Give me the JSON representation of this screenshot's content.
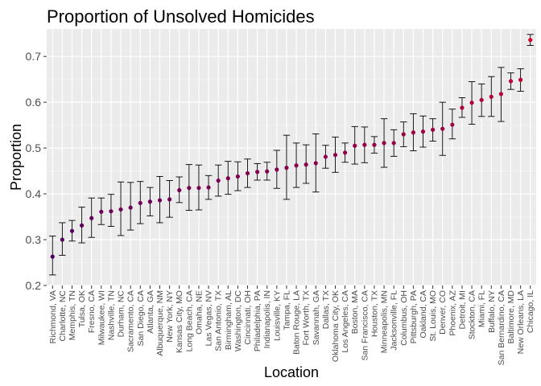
{
  "chart_data": {
    "type": "scatter",
    "title": "Proportion of Unsolved Homicides",
    "xlabel": "Location",
    "ylabel": "Proportion",
    "ylim": [
      0.2,
      0.76
    ],
    "yticks": [
      "0.2",
      "0.3",
      "0.4",
      "0.5",
      "0.6",
      "0.7"
    ],
    "grid": true,
    "legend": "none",
    "color_low": "#4b0066",
    "color_high": "#d8002a",
    "panel_bg": "#ebebeb",
    "categories": [
      "Richmond, VA",
      "Charlotte, NC",
      "Memphis, TN",
      "Tulsa, OK",
      "Fresno, CA",
      "Milwaukee, WI",
      "Nashville, TN",
      "Durham, NC",
      "Sacramento, CA",
      "San Diego, CA",
      "Atlanta, GA",
      "Albuquerque, NM",
      "New York, NY",
      "Kansas City, MO",
      "Long Beach, CA",
      "Omaha, NE",
      "Las Vegas, NV",
      "San Antonio, TX",
      "Birmingham, AL",
      "Washington, DC",
      "Cincinnati, OH",
      "Philadelphia, PA",
      "Indianapolis, IN",
      "Louisville, KY",
      "Tampa, FL",
      "Baton Rouge, LA",
      "Fort Worth, TX",
      "Savannah, GA",
      "Dallas, TX",
      "Oklahoma City, OK",
      "Los Angeles, CA",
      "Boston, MA",
      "San Francisco, CA",
      "Houston, TX",
      "Minneapolis, MN",
      "Jacksonville, FL",
      "Columbus, OH",
      "Pittsburgh, PA",
      "Oakland, CA",
      "St. Louis, MO",
      "Denver, CO",
      "Phoenix, AZ",
      "Detroit, MI",
      "Stockton, CA",
      "Miami, FL",
      "Buffalo, NY",
      "San Bernardino, CA",
      "Baltimore, MD",
      "New Orleans, LA",
      "Chicago, IL"
    ],
    "estimate": [
      0.263,
      0.3,
      0.319,
      0.331,
      0.347,
      0.361,
      0.362,
      0.366,
      0.37,
      0.38,
      0.383,
      0.386,
      0.388,
      0.408,
      0.413,
      0.413,
      0.414,
      0.429,
      0.434,
      0.438,
      0.445,
      0.448,
      0.449,
      0.453,
      0.457,
      0.462,
      0.464,
      0.467,
      0.481,
      0.485,
      0.49,
      0.505,
      0.507,
      0.507,
      0.511,
      0.511,
      0.53,
      0.534,
      0.536,
      0.54,
      0.542,
      0.551,
      0.588,
      0.599,
      0.605,
      0.612,
      0.618,
      0.646,
      0.649,
      0.736
    ],
    "conf_low": [
      0.223,
      0.266,
      0.297,
      0.293,
      0.305,
      0.333,
      0.329,
      0.309,
      0.321,
      0.335,
      0.352,
      0.337,
      0.349,
      0.381,
      0.364,
      0.365,
      0.388,
      0.395,
      0.399,
      0.407,
      0.414,
      0.43,
      0.43,
      0.412,
      0.388,
      0.414,
      0.423,
      0.404,
      0.456,
      0.447,
      0.469,
      0.465,
      0.468,
      0.489,
      0.458,
      0.482,
      0.503,
      0.494,
      0.502,
      0.515,
      0.484,
      0.52,
      0.567,
      0.552,
      0.569,
      0.569,
      0.558,
      0.628,
      0.624,
      0.724
    ],
    "conf_high": [
      0.308,
      0.337,
      0.342,
      0.371,
      0.391,
      0.391,
      0.399,
      0.426,
      0.425,
      0.427,
      0.414,
      0.438,
      0.429,
      0.437,
      0.464,
      0.463,
      0.44,
      0.463,
      0.471,
      0.47,
      0.476,
      0.466,
      0.469,
      0.495,
      0.528,
      0.511,
      0.507,
      0.531,
      0.506,
      0.524,
      0.511,
      0.547,
      0.546,
      0.525,
      0.564,
      0.54,
      0.557,
      0.575,
      0.57,
      0.564,
      0.6,
      0.585,
      0.61,
      0.645,
      0.64,
      0.656,
      0.676,
      0.664,
      0.673,
      0.748
    ]
  }
}
